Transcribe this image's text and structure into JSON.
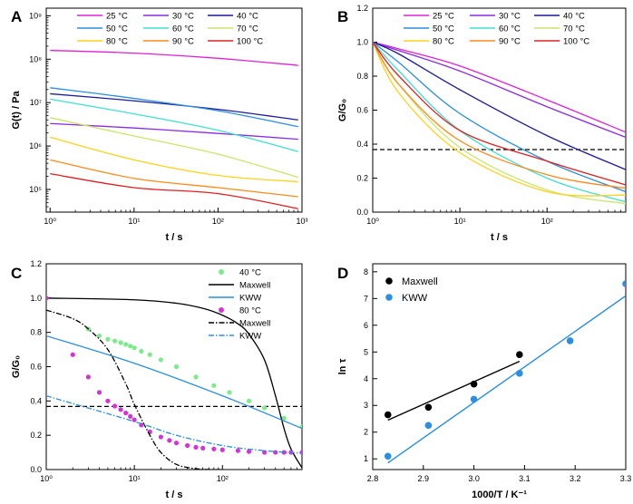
{
  "panels": [
    {
      "letter": "A",
      "type": "line",
      "xscale": "log",
      "yscale": "log",
      "xlim": [
        0.9,
        1000
      ],
      "ylim": [
        30000,
        1500000000
      ],
      "xlabel": "t / s",
      "ylabel": "G(t) / Pa",
      "xticks": [
        {
          "v": 1,
          "l": "10^0"
        },
        {
          "v": 10,
          "l": "10^1"
        },
        {
          "v": 100,
          "l": "10^2"
        },
        {
          "v": 1000,
          "l": "10^3"
        }
      ],
      "yticks": [
        {
          "v": 100000,
          "l": "10^5"
        },
        {
          "v": 1000000,
          "l": "10^6"
        },
        {
          "v": 10000000,
          "l": "10^7"
        },
        {
          "v": 100000000,
          "l": "10^8"
        },
        {
          "v": 1000000000,
          "l": "10^9"
        }
      ],
      "legend_position": "top",
      "series": [
        {
          "name": "25 °C",
          "color": "#e020d8",
          "x": [
            1,
            10,
            100,
            900
          ],
          "y": [
            160000000,
            138000000,
            105000000,
            72000000
          ]
        },
        {
          "name": "30 °C",
          "color": "#8a2be2",
          "x": [
            1,
            10,
            100,
            900
          ],
          "y": [
            3300000,
            2600000,
            1950000,
            1430000
          ]
        },
        {
          "name": "40 °C",
          "color": "#1c1c9c",
          "x": [
            1,
            10,
            100,
            900
          ],
          "y": [
            16000000,
            11000000,
            7000000,
            4000000
          ]
        },
        {
          "name": "50 °C",
          "color": "#2a8fe0",
          "x": [
            1,
            10,
            100,
            900
          ],
          "y": [
            22000000,
            12500000,
            6500000,
            2800000
          ]
        },
        {
          "name": "60 °C",
          "color": "#40e0d0",
          "x": [
            1,
            10,
            100,
            900
          ],
          "y": [
            12000000,
            5500000,
            2300000,
            750000
          ]
        },
        {
          "name": "70 °C",
          "color": "#c8e668",
          "x": [
            1,
            10,
            100,
            900
          ],
          "y": [
            4500000,
            1700000,
            650000,
            190000
          ]
        },
        {
          "name": "80 °C",
          "color": "#ffd21a",
          "x": [
            1,
            10,
            100,
            900
          ],
          "y": [
            1600000,
            480000,
            210000,
            150000
          ]
        },
        {
          "name": "90 °C",
          "color": "#ff8a1a",
          "x": [
            1,
            10,
            100,
            900
          ],
          "y": [
            480000,
            180000,
            110000,
            68000
          ]
        },
        {
          "name": "100 °C",
          "color": "#e02020",
          "x": [
            1,
            10,
            100,
            900
          ],
          "y": [
            230000,
            110000,
            80000,
            36000
          ]
        }
      ]
    },
    {
      "letter": "B",
      "type": "line",
      "xscale": "log",
      "yscale": "linear",
      "xlim": [
        1,
        800
      ],
      "ylim": [
        0,
        1.2
      ],
      "xlabel": "t / s",
      "ylabel": "G/G0",
      "xticks": [
        {
          "v": 1,
          "l": "10^0"
        },
        {
          "v": 10,
          "l": "10^1"
        },
        {
          "v": 100,
          "l": "10^2"
        }
      ],
      "yticks": [
        {
          "v": 0,
          "l": "0.0"
        },
        {
          "v": 0.2,
          "l": "0.2"
        },
        {
          "v": 0.4,
          "l": "0.4"
        },
        {
          "v": 0.6,
          "l": "0.6"
        },
        {
          "v": 0.8,
          "l": "0.8"
        },
        {
          "v": 1.0,
          "l": "1.0"
        },
        {
          "v": 1.2,
          "l": "1.2"
        }
      ],
      "reference_line": 0.368,
      "legend_position": "top",
      "series": [
        {
          "name": "25 °C",
          "color": "#e020d8",
          "x": [
            1,
            2,
            10,
            100,
            800
          ],
          "y": [
            1.0,
            0.96,
            0.86,
            0.66,
            0.47
          ]
        },
        {
          "name": "30 °C",
          "color": "#8a2be2",
          "x": [
            1,
            2,
            10,
            100,
            800
          ],
          "y": [
            1.0,
            0.95,
            0.83,
            0.62,
            0.44
          ]
        },
        {
          "name": "40 °C",
          "color": "#1c1c9c",
          "x": [
            1,
            2,
            10,
            100,
            800
          ],
          "y": [
            1.0,
            0.93,
            0.72,
            0.45,
            0.25
          ]
        },
        {
          "name": "50 °C",
          "color": "#2a8fe0",
          "x": [
            1,
            2,
            10,
            100,
            800
          ],
          "y": [
            1.0,
            0.88,
            0.58,
            0.3,
            0.12
          ]
        },
        {
          "name": "60 °C",
          "color": "#40e0d0",
          "x": [
            1,
            2,
            10,
            100,
            800
          ],
          "y": [
            1.0,
            0.83,
            0.48,
            0.2,
            0.06
          ]
        },
        {
          "name": "70 °C",
          "color": "#c8e668",
          "x": [
            1,
            2,
            10,
            100,
            800
          ],
          "y": [
            1.0,
            0.75,
            0.38,
            0.13,
            0.05
          ]
        },
        {
          "name": "80 °C",
          "color": "#ffd21a",
          "x": [
            1,
            2,
            10,
            100,
            800
          ],
          "y": [
            1.0,
            0.7,
            0.35,
            0.12,
            0.1
          ]
        },
        {
          "name": "90 °C",
          "color": "#ff8a1a",
          "x": [
            1,
            2,
            10,
            100,
            800
          ],
          "y": [
            1.0,
            0.75,
            0.42,
            0.22,
            0.14
          ]
        },
        {
          "name": "100 °C",
          "color": "#e02020",
          "x": [
            1,
            2,
            10,
            100,
            800
          ],
          "y": [
            1.0,
            0.8,
            0.48,
            0.3,
            0.16
          ]
        }
      ]
    },
    {
      "letter": "C",
      "type": "scatter",
      "xscale": "log",
      "yscale": "linear",
      "xlim": [
        1,
        800
      ],
      "ylim": [
        0,
        1.2
      ],
      "xlabel": "t / s",
      "ylabel": "G/G0",
      "xticks": [
        {
          "v": 1,
          "l": "10^0"
        },
        {
          "v": 10,
          "l": "10^1"
        },
        {
          "v": 100,
          "l": "10^2"
        }
      ],
      "yticks": [
        {
          "v": 0,
          "l": "0.0"
        },
        {
          "v": 0.2,
          "l": "0.2"
        },
        {
          "v": 0.4,
          "l": "0.4"
        },
        {
          "v": 0.6,
          "l": "0.6"
        },
        {
          "v": 0.8,
          "l": "0.8"
        },
        {
          "v": 1.0,
          "l": "1.0"
        },
        {
          "v": 1.2,
          "l": "1.2"
        }
      ],
      "reference_line": 0.368,
      "legend_position": "top-right",
      "series": [
        {
          "name": "40 °C",
          "kind": "points",
          "color": "#7dea8c",
          "x": [
            1,
            3,
            4,
            5,
            6,
            7,
            8,
            9,
            10,
            12,
            15,
            20,
            30,
            50,
            80,
            120,
            200,
            300,
            500,
            800
          ],
          "y": [
            1.0,
            0.82,
            0.78,
            0.76,
            0.75,
            0.74,
            0.73,
            0.72,
            0.71,
            0.69,
            0.67,
            0.64,
            0.6,
            0.54,
            0.49,
            0.45,
            0.4,
            0.36,
            0.3,
            0.25
          ]
        },
        {
          "name": "Maxwell",
          "kind": "line",
          "dash": "solid",
          "color": "#000000",
          "x": [
            1,
            10,
            30,
            60,
            100,
            150,
            200,
            300,
            400,
            500,
            600,
            800
          ],
          "y": [
            1.0,
            0.99,
            0.97,
            0.94,
            0.9,
            0.85,
            0.79,
            0.64,
            0.43,
            0.24,
            0.12,
            0.01
          ]
        },
        {
          "name": "KWW",
          "kind": "line",
          "dash": "solid",
          "color": "#2a8fe0",
          "x": [
            1,
            10,
            100,
            800
          ],
          "y": [
            0.78,
            0.62,
            0.43,
            0.24
          ]
        },
        {
          "name": "80 °C",
          "kind": "points",
          "color": "#d633d6",
          "x": [
            1,
            2,
            3,
            4,
            5,
            6,
            7,
            8,
            9,
            10,
            12,
            15,
            20,
            25,
            30,
            40,
            50,
            60,
            80,
            100,
            150,
            200,
            300,
            400,
            500,
            600,
            800
          ],
          "y": [
            1.0,
            0.67,
            0.54,
            0.45,
            0.4,
            0.37,
            0.35,
            0.33,
            0.31,
            0.29,
            0.26,
            0.22,
            0.19,
            0.17,
            0.155,
            0.14,
            0.13,
            0.125,
            0.12,
            0.115,
            0.11,
            0.105,
            0.1,
            0.1,
            0.1,
            0.1,
            0.1
          ]
        },
        {
          "name": "Maxwell",
          "kind": "line",
          "dash": "dashdot",
          "color": "#000000",
          "x": [
            1,
            2,
            3,
            5,
            8,
            10,
            15,
            20,
            30,
            50,
            80,
            100
          ],
          "y": [
            0.93,
            0.88,
            0.82,
            0.7,
            0.5,
            0.38,
            0.2,
            0.1,
            0.03,
            0.005,
            0.0,
            0.0
          ]
        },
        {
          "name": "KWW",
          "kind": "line",
          "dash": "dashdot",
          "color": "#2a8fe0",
          "x": [
            1,
            10,
            30,
            100,
            300,
            800
          ],
          "y": [
            0.43,
            0.28,
            0.2,
            0.14,
            0.11,
            0.095
          ]
        }
      ]
    },
    {
      "letter": "D",
      "type": "scatter",
      "xscale": "linear",
      "yscale": "linear",
      "xlim": [
        2.8,
        3.3
      ],
      "ylim": [
        0.6,
        8.3
      ],
      "xlabel": "1000/T / K-1",
      "ylabel": "ln τ",
      "xticks": [
        {
          "v": 2.8,
          "l": "2.8"
        },
        {
          "v": 2.9,
          "l": "2.9"
        },
        {
          "v": 3.0,
          "l": "3.0"
        },
        {
          "v": 3.1,
          "l": "3.1"
        },
        {
          "v": 3.2,
          "l": "3.2"
        },
        {
          "v": 3.3,
          "l": "3.3"
        }
      ],
      "yticks": [
        {
          "v": 1,
          "l": "1"
        },
        {
          "v": 2,
          "l": "2"
        },
        {
          "v": 3,
          "l": "3"
        },
        {
          "v": 4,
          "l": "4"
        },
        {
          "v": 5,
          "l": "5"
        },
        {
          "v": 6,
          "l": "6"
        },
        {
          "v": 7,
          "l": "7"
        },
        {
          "v": 8,
          "l": "8"
        }
      ],
      "legend_position": "top-left",
      "series": [
        {
          "name": "Maxwell",
          "color": "#000000",
          "x": [
            2.83,
            2.91,
            3.0,
            3.09
          ],
          "y": [
            2.65,
            2.93,
            3.8,
            4.9
          ],
          "fit": [
            [
              2.83,
              2.45
            ],
            [
              3.09,
              4.65
            ]
          ]
        },
        {
          "name": "KWW",
          "color": "#2a8fe0",
          "x": [
            2.83,
            2.91,
            3.0,
            3.09,
            3.19,
            3.3
          ],
          "y": [
            1.1,
            2.25,
            3.23,
            4.2,
            5.42,
            7.55
          ],
          "fit": [
            [
              2.83,
              0.85
            ],
            [
              3.3,
              7.1
            ]
          ]
        }
      ]
    }
  ]
}
